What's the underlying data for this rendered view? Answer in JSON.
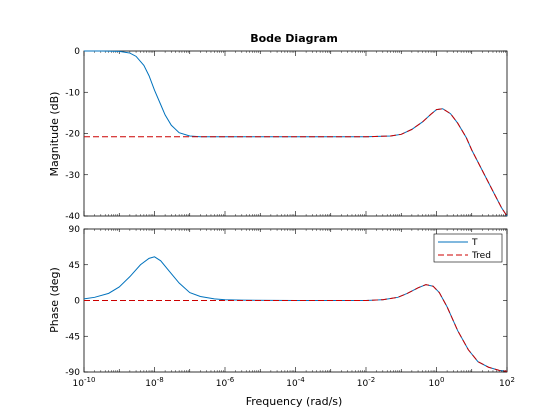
{
  "figure": {
    "title": "Bode Diagram",
    "xlabel": "Frequency  (rad/s)"
  },
  "legend": {
    "placement": "top-right of phase panel",
    "entries": [
      {
        "label": "T",
        "color": "#0072bd",
        "style": "solid"
      },
      {
        "label": "Tred",
        "color": "#cc0000",
        "style": "dashed"
      }
    ]
  },
  "chart_data": [
    {
      "type": "line",
      "panel": "magnitude",
      "title": "Bode Diagram",
      "ylabel": "Magnitude (dB)",
      "xscale": "log",
      "xlim": [
        1e-10,
        100
      ],
      "ylim": [
        -40,
        0
      ],
      "x_tick_labels": [
        "10^-10",
        "10^-8",
        "10^-6",
        "10^-4",
        "10^-2",
        "10^0",
        "10^2"
      ],
      "y_tick_labels": [
        "0",
        "-10",
        "-20",
        "-30",
        "-40"
      ],
      "grid": false,
      "series": [
        {
          "name": "T",
          "color": "#0072bd",
          "style": "solid",
          "x": [
            1e-10,
            3e-10,
            1e-09,
            2e-09,
            3e-09,
            5e-09,
            7e-09,
            1e-08,
            1.5e-08,
            2e-08,
            3e-08,
            5e-08,
            1e-07,
            2e-07,
            1e-06,
            0.0001,
            0.01,
            0.05,
            0.1,
            0.2,
            0.4,
            0.7,
            1.0,
            1.5,
            2.5,
            4,
            7,
            10,
            20,
            40,
            70,
            100
          ],
          "y": [
            0,
            0,
            -0.1,
            -0.5,
            -1.3,
            -3.5,
            -6,
            -9.5,
            -13,
            -15.5,
            -18,
            -19.8,
            -20.6,
            -20.8,
            -20.8,
            -20.8,
            -20.8,
            -20.6,
            -20.2,
            -19,
            -17.2,
            -15.3,
            -14.2,
            -14,
            -15.2,
            -17.5,
            -21,
            -24,
            -29,
            -34,
            -38,
            -40
          ]
        },
        {
          "name": "Tred",
          "color": "#cc0000",
          "style": "dashed",
          "x": [
            1e-10,
            1e-08,
            1e-06,
            0.0001,
            0.01,
            0.05,
            0.1,
            0.2,
            0.4,
            0.7,
            1.0,
            1.5,
            2.5,
            4,
            7,
            10,
            20,
            40,
            70,
            100
          ],
          "y": [
            -20.8,
            -20.8,
            -20.8,
            -20.8,
            -20.8,
            -20.6,
            -20.2,
            -19,
            -17.2,
            -15.3,
            -14.2,
            -14,
            -15.2,
            -17.5,
            -21,
            -24,
            -29,
            -34,
            -38,
            -40
          ]
        }
      ]
    },
    {
      "type": "line",
      "panel": "phase",
      "ylabel": "Phase (deg)",
      "xlabel": "Frequency  (rad/s)",
      "xscale": "log",
      "xlim": [
        1e-10,
        100
      ],
      "ylim": [
        -90,
        90
      ],
      "x_tick_labels": [
        "10^-10",
        "10^-8",
        "10^-6",
        "10^-4",
        "10^-2",
        "10^0",
        "10^2"
      ],
      "y_tick_labels": [
        "90",
        "45",
        "0",
        "-45",
        "-90"
      ],
      "grid": false,
      "series": [
        {
          "name": "T",
          "color": "#0072bd",
          "style": "solid",
          "x": [
            1e-10,
            2e-10,
            5e-10,
            1e-09,
            2e-09,
            4e-09,
            7e-09,
            1e-08,
            1.5e-08,
            2.5e-08,
            5e-08,
            1e-07,
            2e-07,
            5e-07,
            1e-06,
            3e-06,
            0.0001,
            0.01,
            0.03,
            0.08,
            0.15,
            0.3,
            0.5,
            0.8,
            1.2,
            2,
            4,
            8,
            15,
            30,
            60,
            100
          ],
          "y": [
            2,
            4,
            9,
            17,
            30,
            45,
            53,
            55,
            50,
            38,
            22,
            10,
            5,
            2,
            1,
            0.5,
            0,
            0,
            1,
            4,
            9,
            16,
            20,
            18,
            10,
            -8,
            -38,
            -62,
            -77,
            -84,
            -88,
            -89
          ]
        },
        {
          "name": "Tred",
          "color": "#cc0000",
          "style": "dashed",
          "x": [
            1e-10,
            1e-08,
            1e-06,
            0.0001,
            0.01,
            0.03,
            0.08,
            0.15,
            0.3,
            0.5,
            0.8,
            1.2,
            2,
            4,
            8,
            15,
            30,
            60,
            100
          ],
          "y": [
            0,
            0,
            0,
            0,
            0,
            1,
            4,
            9,
            16,
            20,
            18,
            10,
            -8,
            -38,
            -62,
            -77,
            -84,
            -88,
            -89
          ]
        }
      ]
    }
  ]
}
